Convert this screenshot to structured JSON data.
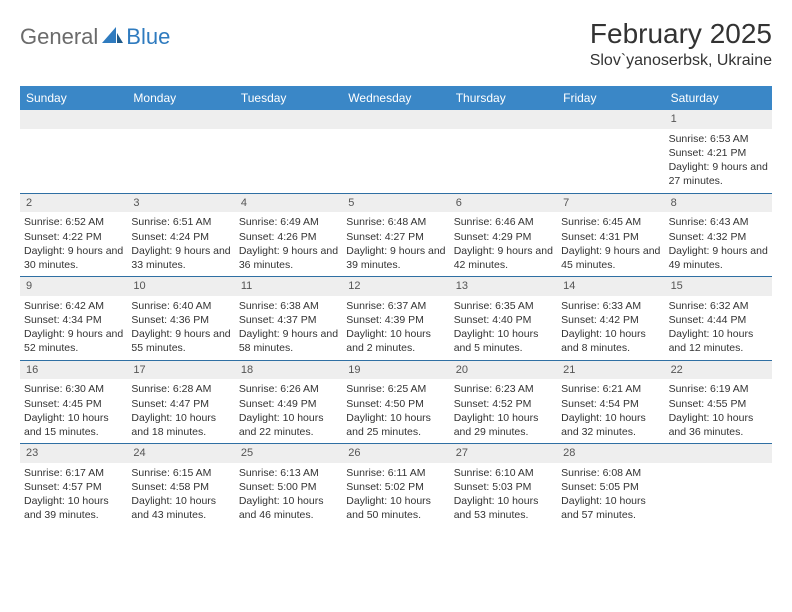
{
  "logo": {
    "general": "General",
    "blue": "Blue"
  },
  "title": "February 2025",
  "location": "Slov`yanoserbsk, Ukraine",
  "accent_color": "#3a87c7",
  "grid_border_color": "#2f6fa3",
  "daynum_bg": "#eeeeee",
  "weekdays": [
    "Sunday",
    "Monday",
    "Tuesday",
    "Wednesday",
    "Thursday",
    "Friday",
    "Saturday"
  ],
  "weeks": [
    [
      {
        "day": "",
        "lines": []
      },
      {
        "day": "",
        "lines": []
      },
      {
        "day": "",
        "lines": []
      },
      {
        "day": "",
        "lines": []
      },
      {
        "day": "",
        "lines": []
      },
      {
        "day": "",
        "lines": []
      },
      {
        "day": "1",
        "lines": [
          "Sunrise: 6:53 AM",
          "Sunset: 4:21 PM",
          "Daylight: 9 hours and 27 minutes."
        ]
      }
    ],
    [
      {
        "day": "2",
        "lines": [
          "Sunrise: 6:52 AM",
          "Sunset: 4:22 PM",
          "Daylight: 9 hours and 30 minutes."
        ]
      },
      {
        "day": "3",
        "lines": [
          "Sunrise: 6:51 AM",
          "Sunset: 4:24 PM",
          "Daylight: 9 hours and 33 minutes."
        ]
      },
      {
        "day": "4",
        "lines": [
          "Sunrise: 6:49 AM",
          "Sunset: 4:26 PM",
          "Daylight: 9 hours and 36 minutes."
        ]
      },
      {
        "day": "5",
        "lines": [
          "Sunrise: 6:48 AM",
          "Sunset: 4:27 PM",
          "Daylight: 9 hours and 39 minutes."
        ]
      },
      {
        "day": "6",
        "lines": [
          "Sunrise: 6:46 AM",
          "Sunset: 4:29 PM",
          "Daylight: 9 hours and 42 minutes."
        ]
      },
      {
        "day": "7",
        "lines": [
          "Sunrise: 6:45 AM",
          "Sunset: 4:31 PM",
          "Daylight: 9 hours and 45 minutes."
        ]
      },
      {
        "day": "8",
        "lines": [
          "Sunrise: 6:43 AM",
          "Sunset: 4:32 PM",
          "Daylight: 9 hours and 49 minutes."
        ]
      }
    ],
    [
      {
        "day": "9",
        "lines": [
          "Sunrise: 6:42 AM",
          "Sunset: 4:34 PM",
          "Daylight: 9 hours and 52 minutes."
        ]
      },
      {
        "day": "10",
        "lines": [
          "Sunrise: 6:40 AM",
          "Sunset: 4:36 PM",
          "Daylight: 9 hours and 55 minutes."
        ]
      },
      {
        "day": "11",
        "lines": [
          "Sunrise: 6:38 AM",
          "Sunset: 4:37 PM",
          "Daylight: 9 hours and 58 minutes."
        ]
      },
      {
        "day": "12",
        "lines": [
          "Sunrise: 6:37 AM",
          "Sunset: 4:39 PM",
          "Daylight: 10 hours and 2 minutes."
        ]
      },
      {
        "day": "13",
        "lines": [
          "Sunrise: 6:35 AM",
          "Sunset: 4:40 PM",
          "Daylight: 10 hours and 5 minutes."
        ]
      },
      {
        "day": "14",
        "lines": [
          "Sunrise: 6:33 AM",
          "Sunset: 4:42 PM",
          "Daylight: 10 hours and 8 minutes."
        ]
      },
      {
        "day": "15",
        "lines": [
          "Sunrise: 6:32 AM",
          "Sunset: 4:44 PM",
          "Daylight: 10 hours and 12 minutes."
        ]
      }
    ],
    [
      {
        "day": "16",
        "lines": [
          "Sunrise: 6:30 AM",
          "Sunset: 4:45 PM",
          "Daylight: 10 hours and 15 minutes."
        ]
      },
      {
        "day": "17",
        "lines": [
          "Sunrise: 6:28 AM",
          "Sunset: 4:47 PM",
          "Daylight: 10 hours and 18 minutes."
        ]
      },
      {
        "day": "18",
        "lines": [
          "Sunrise: 6:26 AM",
          "Sunset: 4:49 PM",
          "Daylight: 10 hours and 22 minutes."
        ]
      },
      {
        "day": "19",
        "lines": [
          "Sunrise: 6:25 AM",
          "Sunset: 4:50 PM",
          "Daylight: 10 hours and 25 minutes."
        ]
      },
      {
        "day": "20",
        "lines": [
          "Sunrise: 6:23 AM",
          "Sunset: 4:52 PM",
          "Daylight: 10 hours and 29 minutes."
        ]
      },
      {
        "day": "21",
        "lines": [
          "Sunrise: 6:21 AM",
          "Sunset: 4:54 PM",
          "Daylight: 10 hours and 32 minutes."
        ]
      },
      {
        "day": "22",
        "lines": [
          "Sunrise: 6:19 AM",
          "Sunset: 4:55 PM",
          "Daylight: 10 hours and 36 minutes."
        ]
      }
    ],
    [
      {
        "day": "23",
        "lines": [
          "Sunrise: 6:17 AM",
          "Sunset: 4:57 PM",
          "Daylight: 10 hours and 39 minutes."
        ]
      },
      {
        "day": "24",
        "lines": [
          "Sunrise: 6:15 AM",
          "Sunset: 4:58 PM",
          "Daylight: 10 hours and 43 minutes."
        ]
      },
      {
        "day": "25",
        "lines": [
          "Sunrise: 6:13 AM",
          "Sunset: 5:00 PM",
          "Daylight: 10 hours and 46 minutes."
        ]
      },
      {
        "day": "26",
        "lines": [
          "Sunrise: 6:11 AM",
          "Sunset: 5:02 PM",
          "Daylight: 10 hours and 50 minutes."
        ]
      },
      {
        "day": "27",
        "lines": [
          "Sunrise: 6:10 AM",
          "Sunset: 5:03 PM",
          "Daylight: 10 hours and 53 minutes."
        ]
      },
      {
        "day": "28",
        "lines": [
          "Sunrise: 6:08 AM",
          "Sunset: 5:05 PM",
          "Daylight: 10 hours and 57 minutes."
        ]
      },
      {
        "day": "",
        "lines": []
      }
    ]
  ]
}
